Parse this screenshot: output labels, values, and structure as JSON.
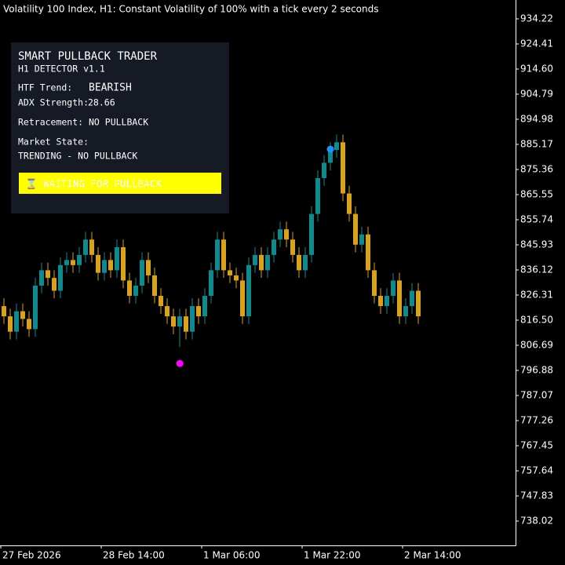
{
  "chart_data": {
    "type": "candlestick",
    "title": "Volatility 100 Index, H1:  Constant Volatility of 100% with a tick every 2 seconds",
    "categories": [
      "27 Feb 2026",
      null,
      null,
      null,
      null,
      null,
      null,
      null,
      null,
      null,
      null,
      null,
      null,
      null,
      null,
      null,
      "28 Feb 14:00",
      null,
      null,
      null,
      null,
      null,
      null,
      null,
      null,
      null,
      null,
      null,
      null,
      null,
      null,
      null,
      "1 Mar 06:00",
      null,
      null,
      null,
      null,
      null,
      null,
      null,
      null,
      null,
      null,
      null,
      null,
      null,
      null,
      null,
      "1 Mar 22:00",
      null,
      null,
      null,
      null,
      null,
      null,
      null,
      null,
      null,
      null,
      null,
      null,
      null,
      null,
      null,
      "2 Mar 14:00",
      null,
      null
    ],
    "open": [
      822,
      818,
      812,
      820,
      817,
      813,
      830,
      836,
      833,
      828,
      838,
      840,
      838,
      842,
      848,
      842,
      835,
      840,
      836,
      845,
      832,
      826,
      830,
      840,
      834,
      826,
      822,
      818,
      814,
      818,
      812,
      822,
      818,
      826,
      836,
      848,
      836,
      834,
      832,
      818,
      838,
      842,
      836,
      842,
      848,
      852,
      848,
      842,
      836,
      842,
      858,
      872,
      878,
      883,
      886,
      866,
      858,
      846,
      850,
      836,
      826,
      822,
      826,
      832,
      818,
      822,
      828
    ],
    "high": [
      825,
      821,
      823,
      823,
      820,
      833,
      839,
      839,
      836,
      841,
      843,
      843,
      845,
      851,
      851,
      845,
      843,
      843,
      848,
      848,
      835,
      833,
      843,
      843,
      837,
      829,
      825,
      821,
      821,
      821,
      825,
      825,
      829,
      839,
      851,
      851,
      839,
      837,
      835,
      841,
      845,
      845,
      845,
      851,
      855,
      855,
      851,
      845,
      845,
      861,
      875,
      881,
      886,
      889,
      889,
      869,
      861,
      853,
      853,
      839,
      829,
      829,
      835,
      835,
      825,
      831,
      831
    ],
    "low": [
      815,
      809,
      809,
      814,
      810,
      810,
      827,
      830,
      825,
      825,
      835,
      835,
      835,
      839,
      839,
      832,
      832,
      833,
      833,
      829,
      823,
      823,
      827,
      831,
      823,
      819,
      815,
      811,
      806,
      809,
      809,
      815,
      815,
      823,
      833,
      833,
      831,
      829,
      815,
      815,
      835,
      833,
      833,
      839,
      845,
      845,
      839,
      833,
      833,
      839,
      855,
      869,
      875,
      880,
      863,
      855,
      843,
      843,
      833,
      823,
      819,
      819,
      823,
      815,
      815,
      819,
      815
    ],
    "close": [
      818,
      812,
      820,
      817,
      813,
      830,
      836,
      833,
      828,
      838,
      840,
      838,
      842,
      848,
      842,
      835,
      840,
      836,
      845,
      832,
      826,
      830,
      840,
      834,
      826,
      822,
      818,
      814,
      818,
      812,
      822,
      818,
      826,
      836,
      848,
      836,
      834,
      832,
      818,
      838,
      842,
      836,
      842,
      848,
      852,
      848,
      842,
      836,
      842,
      858,
      872,
      878,
      883,
      886,
      866,
      858,
      846,
      850,
      836,
      826,
      822,
      826,
      832,
      818,
      822,
      828,
      818
    ],
    "up_color": "#0f8b8d",
    "down_color": "#d9a21b",
    "signals": [
      {
        "index": 28,
        "value": 799.6,
        "color": "#ff00ff"
      },
      {
        "index": 52,
        "value": 883.3,
        "color": "#1e90ff"
      }
    ],
    "ylim": [
      728.52,
      941.58
    ],
    "yticks": [
      934.22,
      924.41,
      {
        "value": 914.6,
        "label": "914.60"
      },
      904.79,
      894.98,
      885.17,
      875.36,
      865.55,
      855.74,
      845.93,
      836.12,
      826.31,
      {
        "value": 816.5,
        "label": "816.50"
      },
      806.69,
      796.88,
      787.07,
      777.26,
      767.45,
      757.64,
      747.83,
      738.02
    ],
    "grid": false
  },
  "panel": {
    "title": "SMART PULLBACK TRADER",
    "subtitle": "H1 DETECTOR v1.1",
    "trend_label": "HTF Trend:",
    "trend_value": "BEARISH",
    "adx_label": "ADX Strength:",
    "adx_value": 28.66,
    "retracement_label": "Retracement:",
    "retracement_value": "NO PULLBACK",
    "state_label": "Market State:",
    "state_value": "TRENDING - NO PULLBACK",
    "status_button": "⌛ WAITING FOR PULLBACK"
  }
}
